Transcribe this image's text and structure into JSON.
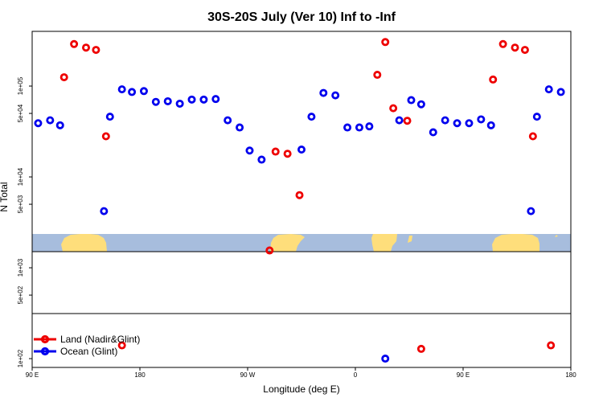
{
  "chart_data": {
    "type": "scatter",
    "title": "30S-20S July (Ver 10)   Inf to -Inf",
    "xlabel": "Longitude (deg E)",
    "ylabel": "N Total",
    "y_scale": "log",
    "xlim": [
      90,
      360
    ],
    "ylim": [
      80,
      400000
    ],
    "x_ticks": [
      {
        "value": 90,
        "label": "90 E"
      },
      {
        "value": 144,
        "label": "180"
      },
      {
        "value": 198,
        "label": "90 W"
      },
      {
        "value": 252,
        "label": "0"
      },
      {
        "value": 306,
        "label": "90 E"
      },
      {
        "value": 360,
        "label": "180"
      }
    ],
    "y_ticks": [
      {
        "value": 100,
        "label": "1e+02"
      },
      {
        "value": 500,
        "label": "5e+02"
      },
      {
        "value": 1000,
        "label": "1e+03"
      },
      {
        "value": 5000,
        "label": "5e+03"
      },
      {
        "value": 10000,
        "label": "1e+04"
      },
      {
        "value": 50000,
        "label": "5e+04"
      },
      {
        "value": 100000,
        "label": "1e+05"
      }
    ],
    "grid": false,
    "legend_position": "bottom-left",
    "map_band": {
      "lat_range": "30S-20S",
      "ocean_color": "#a7bddd",
      "land_color": "#fede7b"
    },
    "series": [
      {
        "name": "Land (Nadir&Glint)",
        "color": "#ee0000",
        "points": [
          [
            106,
            125000
          ],
          [
            111,
            290000
          ],
          [
            117,
            265000
          ],
          [
            122,
            250000
          ],
          [
            127,
            28000
          ],
          [
            135,
            140
          ],
          [
            209,
            1550
          ],
          [
            212,
            19000
          ],
          [
            218,
            18000
          ],
          [
            224,
            6300
          ],
          [
            263,
            133000
          ],
          [
            267,
            305000
          ],
          [
            271,
            57000
          ],
          [
            278,
            41500
          ],
          [
            285,
            128
          ],
          [
            321,
            118000
          ],
          [
            326,
            290000
          ],
          [
            332,
            265000
          ],
          [
            337,
            250000
          ],
          [
            341,
            28000
          ],
          [
            350,
            140
          ]
        ]
      },
      {
        "name": "Ocean (Glint)",
        "color": "#0000ee",
        "points": [
          [
            93,
            39000
          ],
          [
            99,
            42000
          ],
          [
            104,
            37000
          ],
          [
            126,
            4200
          ],
          [
            129,
            46000
          ],
          [
            135,
            92000
          ],
          [
            140,
            86000
          ],
          [
            146,
            88000
          ],
          [
            152,
            67000
          ],
          [
            158,
            68000
          ],
          [
            164,
            64000
          ],
          [
            170,
            71000
          ],
          [
            176,
            71000
          ],
          [
            182,
            72000
          ],
          [
            188,
            42000
          ],
          [
            194,
            35000
          ],
          [
            199,
            19500
          ],
          [
            205,
            15500
          ],
          [
            225,
            20000
          ],
          [
            230,
            46000
          ],
          [
            236,
            84000
          ],
          [
            242,
            79000
          ],
          [
            248,
            35000
          ],
          [
            254,
            35000
          ],
          [
            259,
            36000
          ],
          [
            267,
            100
          ],
          [
            274,
            42000
          ],
          [
            280,
            70000
          ],
          [
            285,
            63000
          ],
          [
            291,
            31000
          ],
          [
            297,
            42000
          ],
          [
            303,
            39000
          ],
          [
            309,
            39000
          ],
          [
            315,
            43000
          ],
          [
            320,
            37000
          ],
          [
            340,
            4200
          ],
          [
            343,
            46000
          ],
          [
            349,
            92000
          ],
          [
            355,
            86000
          ]
        ]
      }
    ]
  }
}
